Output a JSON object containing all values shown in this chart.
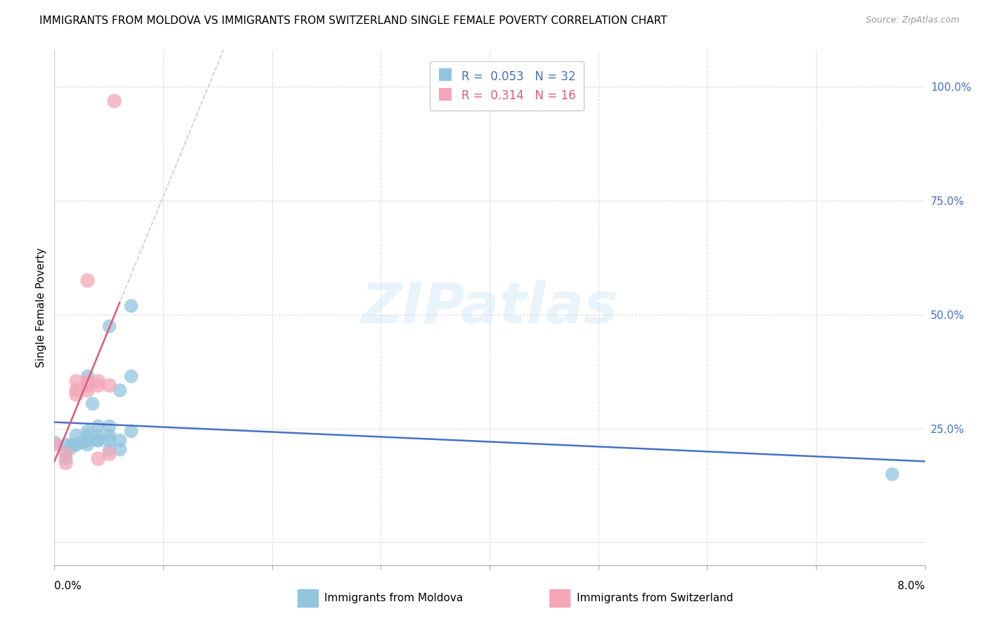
{
  "title": "IMMIGRANTS FROM MOLDOVA VS IMMIGRANTS FROM SWITZERLAND SINGLE FEMALE POVERTY CORRELATION CHART",
  "source": "Source: ZipAtlas.com",
  "ylabel": "Single Female Poverty",
  "legend_blue": {
    "R": 0.053,
    "N": 32,
    "label": "Immigrants from Moldova"
  },
  "legend_pink": {
    "R": 0.314,
    "N": 16,
    "label": "Immigrants from Switzerland"
  },
  "xlim": [
    0.0,
    0.08
  ],
  "ylim": [
    -0.05,
    1.08
  ],
  "watermark": "ZIPatlas",
  "blue_color": "#92c5de",
  "pink_color": "#f4a6b8",
  "blue_line_color": "#4472c4",
  "pink_line_color": "#e05a7a",
  "gray_line_color": "#cccccc",
  "moldova_points": [
    [
      0.0,
      0.22
    ],
    [
      0.001,
      0.2
    ],
    [
      0.001,
      0.215
    ],
    [
      0.001,
      0.185
    ],
    [
      0.0015,
      0.215
    ],
    [
      0.002,
      0.215
    ],
    [
      0.002,
      0.235
    ],
    [
      0.0015,
      0.21
    ],
    [
      0.0025,
      0.22
    ],
    [
      0.003,
      0.235
    ],
    [
      0.003,
      0.355
    ],
    [
      0.003,
      0.365
    ],
    [
      0.003,
      0.245
    ],
    [
      0.003,
      0.225
    ],
    [
      0.003,
      0.215
    ],
    [
      0.004,
      0.225
    ],
    [
      0.0035,
      0.305
    ],
    [
      0.004,
      0.235
    ],
    [
      0.004,
      0.255
    ],
    [
      0.004,
      0.225
    ],
    [
      0.005,
      0.225
    ],
    [
      0.005,
      0.205
    ],
    [
      0.005,
      0.235
    ],
    [
      0.005,
      0.255
    ],
    [
      0.005,
      0.475
    ],
    [
      0.006,
      0.335
    ],
    [
      0.006,
      0.225
    ],
    [
      0.006,
      0.205
    ],
    [
      0.007,
      0.245
    ],
    [
      0.007,
      0.52
    ],
    [
      0.007,
      0.365
    ],
    [
      0.077,
      0.15
    ]
  ],
  "switzerland_points": [
    [
      0.0,
      0.215
    ],
    [
      0.001,
      0.195
    ],
    [
      0.001,
      0.175
    ],
    [
      0.002,
      0.355
    ],
    [
      0.002,
      0.335
    ],
    [
      0.002,
      0.325
    ],
    [
      0.003,
      0.335
    ],
    [
      0.003,
      0.345
    ],
    [
      0.003,
      0.355
    ],
    [
      0.003,
      0.575
    ],
    [
      0.004,
      0.355
    ],
    [
      0.004,
      0.345
    ],
    [
      0.004,
      0.185
    ],
    [
      0.005,
      0.345
    ],
    [
      0.005,
      0.195
    ],
    [
      0.0055,
      0.97
    ]
  ]
}
